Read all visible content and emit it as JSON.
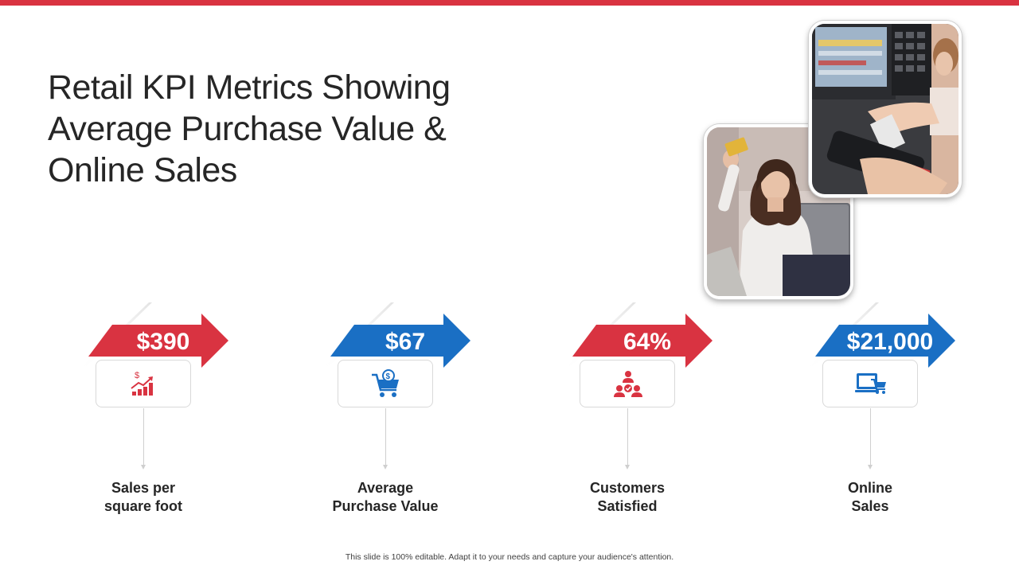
{
  "title": {
    "line1": "Retail KPI Metrics Showing",
    "line2": "Average Purchase Value &",
    "line3": "Online Sales"
  },
  "photos": [
    {
      "name": "shopper-with-card-photo"
    },
    {
      "name": "pos-card-payment-photo"
    }
  ],
  "kpis": [
    {
      "value": "$390",
      "label_line1": "Sales per",
      "label_line2": "square foot",
      "color": "#d93341",
      "icon": "sales-growth-icon"
    },
    {
      "value": "$67",
      "label_line1": "Average",
      "label_line2": "Purchase Value",
      "color": "#1a6fc4",
      "icon": "shopping-cart-dollar-icon"
    },
    {
      "value": "64%",
      "label_line1": "Customers",
      "label_line2": "Satisfied",
      "color": "#d93341",
      "icon": "customer-satisfaction-icon"
    },
    {
      "value": "$21,000",
      "label_line1": "Online",
      "label_line2": "Sales",
      "color": "#1a6fc4",
      "icon": "online-shopping-icon"
    }
  ],
  "footer": "This slide is 100% editable.  Adapt it to your needs and capture your audience's attention.",
  "colors": {
    "accent_red": "#d93341",
    "accent_blue": "#1a6fc4",
    "top_bar": "#d93341"
  }
}
